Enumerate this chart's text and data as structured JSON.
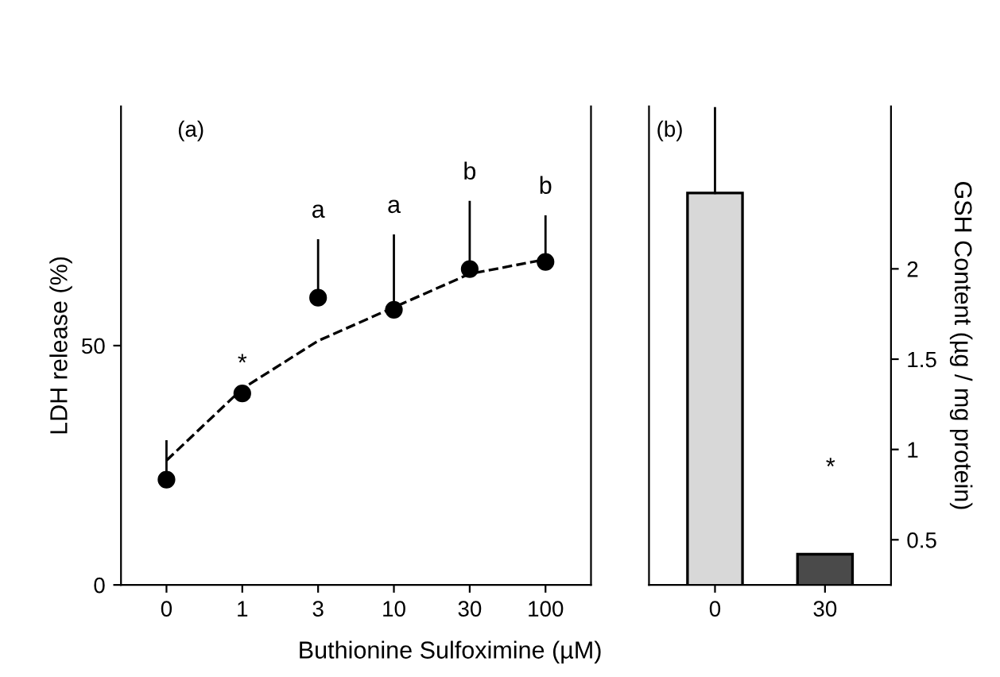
{
  "chart_data": [
    {
      "type": "scatter",
      "title": "(a)",
      "ylabel": "LDH release (%)",
      "xlabel": "Buthionine Sulfoximine (µM)",
      "categories": [
        "0",
        "1",
        "3",
        "10",
        "30",
        "100"
      ],
      "ylim": [
        0,
        100
      ],
      "yticks": [
        0,
        50
      ],
      "series": [
        {
          "type": "scatter",
          "marker": "circle",
          "color": "#000000",
          "values": [
            22,
            40,
            60,
            57.5,
            66,
            67.5
          ],
          "errors": [
            [
              22,
              30
            ],
            null,
            [
              60,
              72
            ],
            [
              57.5,
              73
            ],
            [
              66,
              80
            ],
            [
              67.5,
              77
            ]
          ]
        },
        {
          "type": "line",
          "color": "#000000",
          "line_style": "dashed",
          "values": [
            26,
            41,
            51,
            58,
            65,
            68
          ]
        }
      ],
      "grid": false,
      "legend": false,
      "annotations": [
        {
          "text": "*",
          "x": "1",
          "y": 40
        },
        {
          "text": "a",
          "x": "3",
          "y": 72
        },
        {
          "text": "a",
          "x": "10",
          "y": 73
        },
        {
          "text": "b",
          "x": "30",
          "y": 80
        },
        {
          "text": "b",
          "x": "100",
          "y": 77
        }
      ]
    },
    {
      "type": "bar",
      "title": "(b)",
      "y2label": "GSH Content (µg / mg protein)",
      "categories": [
        "0",
        "30"
      ],
      "series": [
        {
          "axis": "y2",
          "colors": [
            "#d8d8d8",
            "#4a4a4a"
          ],
          "values": [
            2.42,
            0.42
          ],
          "errors": [
            [
              2.42,
              2.89
            ],
            null
          ]
        }
      ],
      "y2lim": [
        0.25,
        2.9
      ],
      "y2ticks": [
        0.5,
        1,
        1.5,
        2
      ],
      "grid": false,
      "legend": false,
      "annotations": [
        "*"
      ]
    }
  ]
}
